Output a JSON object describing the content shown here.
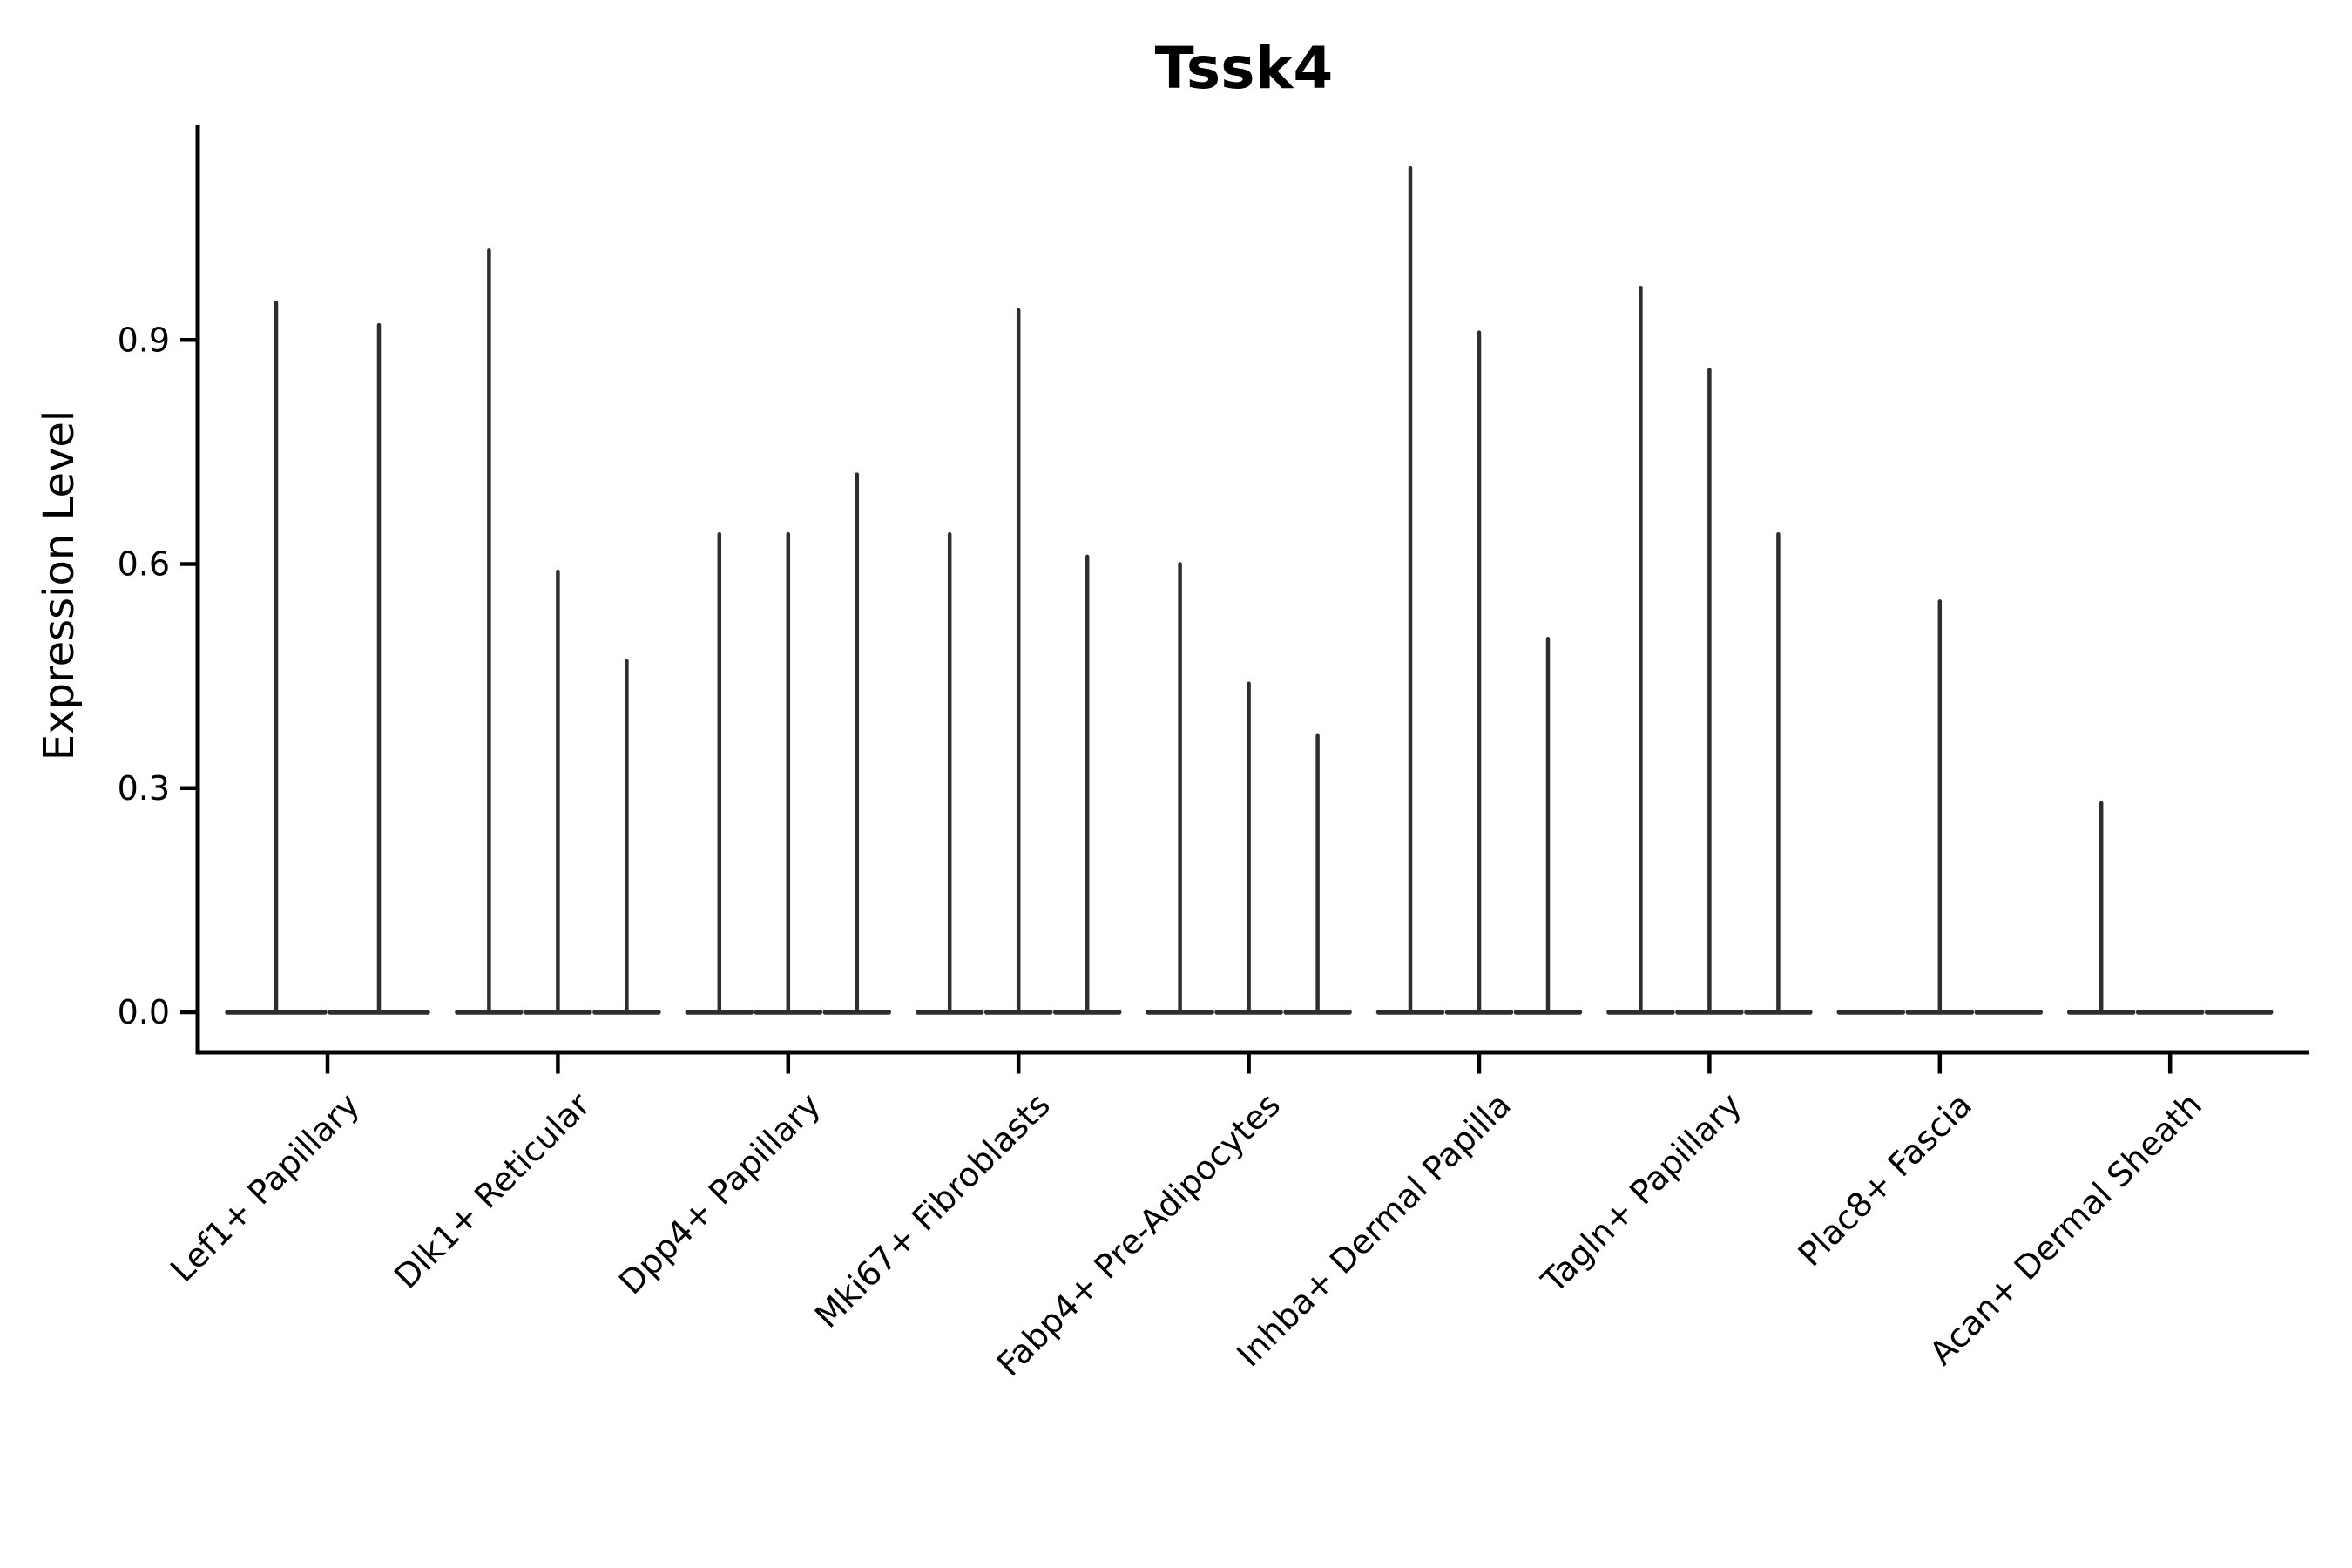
{
  "chart_data": {
    "type": "violin",
    "title": "Tssk4",
    "ylabel": "Expression Level",
    "xlabel": "",
    "ylim": [
      0,
      1.25
    ],
    "yticks": [
      {
        "label": "0.0",
        "value": 0.0
      },
      {
        "label": "0.3",
        "value": 0.3
      },
      {
        "label": "0.6",
        "value": 0.6
      },
      {
        "label": "0.9",
        "value": 0.9
      }
    ],
    "grid": false,
    "legend_position": "none",
    "violin_ink_color": "#2e2e2e",
    "axis_color": "#000000",
    "categories": [
      "Lef1+ Papillary",
      "Dlk1+ Reticular",
      "Dpp4+ Papillary",
      "Mki67+ Fibroblasts",
      "Fabp4+ Pre-Adipocytes",
      "Inhba+ Dermal Papilla",
      "Tagln+ Papillary",
      "Plac8+ Fascia",
      "Acan+ Dermal Sheath"
    ],
    "groups": [
      {
        "category": "Lef1+ Papillary",
        "violin_max_expression": [
          0.95,
          0.92
        ]
      },
      {
        "category": "Dlk1+ Reticular",
        "violin_max_expression": [
          1.02,
          0.59,
          0.47
        ]
      },
      {
        "category": "Dpp4+ Papillary",
        "violin_max_expression": [
          0.64,
          0.64,
          0.72
        ]
      },
      {
        "category": "Mki67+ Fibroblasts",
        "violin_max_expression": [
          0.64,
          0.94,
          0.61
        ]
      },
      {
        "category": "Fabp4+ Pre-Adipocytes",
        "violin_max_expression": [
          0.6,
          0.44,
          0.37
        ]
      },
      {
        "category": "Inhba+ Dermal Papilla",
        "violin_max_expression": [
          1.13,
          0.91,
          0.5
        ]
      },
      {
        "category": "Tagln+ Papillary",
        "violin_max_expression": [
          0.97,
          0.86,
          0.64
        ]
      },
      {
        "category": "Plac8+ Fascia",
        "violin_max_expression": [
          0.0,
          0.55,
          0.0
        ]
      },
      {
        "category": "Acan+ Dermal Sheath",
        "violin_max_expression": [
          0.28,
          0.0,
          0.0
        ]
      }
    ],
    "description": "Violin plot of Tssk4 expression; each category shows 2-3 violins that are flat at 0 with a thin density spike up to the max expression value. Violins with max 0 are flat baselines only."
  }
}
